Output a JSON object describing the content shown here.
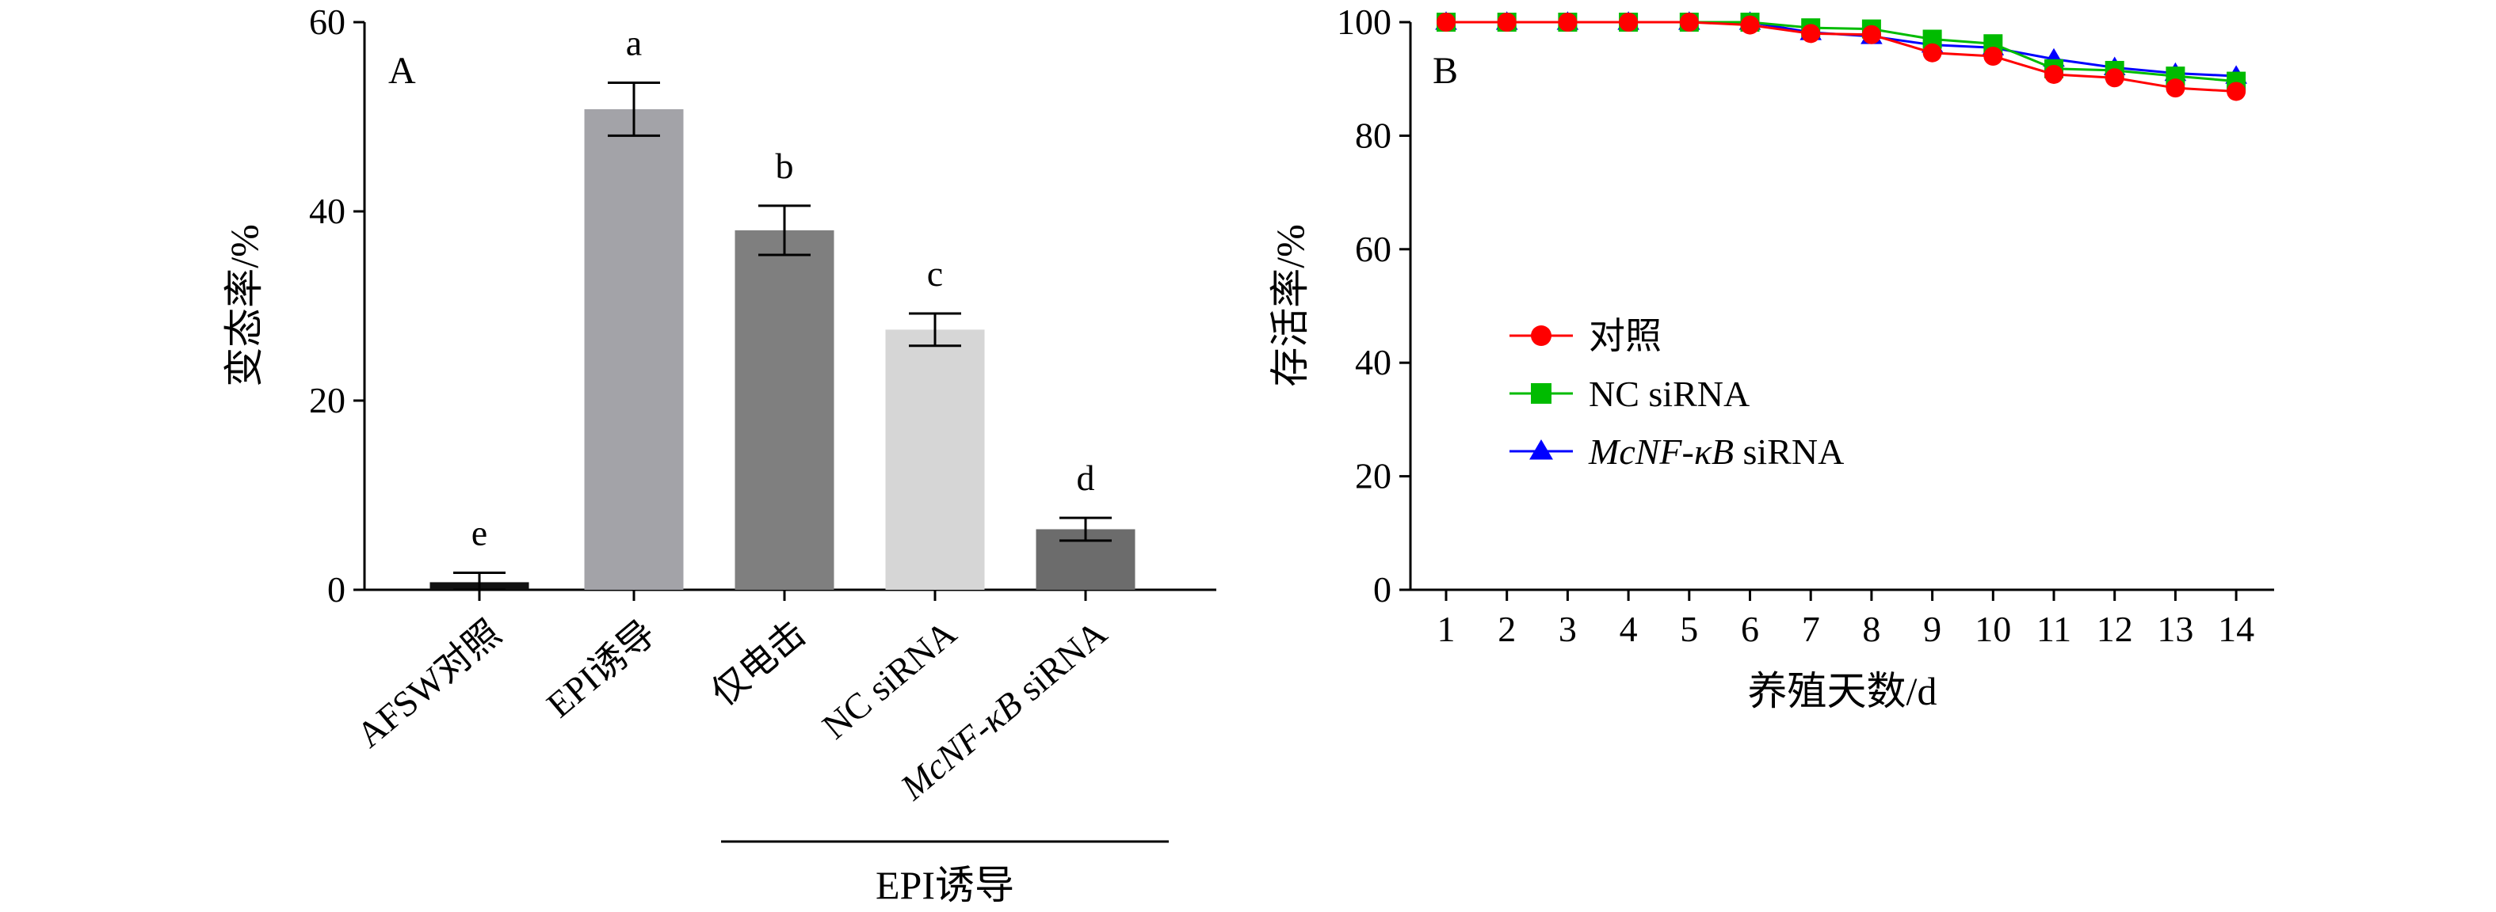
{
  "panels": {
    "a": {
      "label": "A"
    },
    "b": {
      "label": "B"
    }
  },
  "chart_data": [
    {
      "type": "bar",
      "panel": "A",
      "ylabel": "变态率/%",
      "ylim": [
        0,
        60
      ],
      "yticks": [
        0,
        20,
        40,
        60
      ],
      "categories": [
        "AFSW对照",
        "EPI诱导",
        "仅电击",
        "NC siRNA",
        "McNF-κB siRNA"
      ],
      "category_italic": [
        null,
        null,
        null,
        null,
        "McNF-κB"
      ],
      "values": [
        0.8,
        50.8,
        38.0,
        27.5,
        6.4
      ],
      "errors": [
        1.0,
        2.8,
        2.6,
        1.7,
        1.2
      ],
      "significance": [
        "e",
        "a",
        "b",
        "c",
        "d"
      ],
      "bar_colors": [
        "#111111",
        "#a3a3a8",
        "#7f7f7f",
        "#d6d6d6",
        "#6c6c6c"
      ],
      "group_bracket": {
        "label": "EPI诱导",
        "from": 2,
        "to": 4
      }
    },
    {
      "type": "line",
      "panel": "B",
      "xlabel": "养殖天数/d",
      "ylabel": "存活率/%",
      "ylim": [
        0,
        100
      ],
      "yticks": [
        0,
        20,
        40,
        60,
        80,
        100
      ],
      "x": [
        1,
        2,
        3,
        4,
        5,
        6,
        7,
        8,
        9,
        10,
        11,
        12,
        13,
        14
      ],
      "legend_position": "center-left",
      "series": [
        {
          "name": "对照",
          "italic_part": "",
          "rest": "对照",
          "color": "#ff0000",
          "marker": "circle",
          "values": [
            100,
            100,
            100,
            100,
            100,
            99.5,
            98,
            97.8,
            94.6,
            94,
            90.8,
            90.2,
            88.4,
            87.8
          ]
        },
        {
          "name": "NC siRNA",
          "italic_part": "",
          "rest": "NC siRNA",
          "color": "#00bb00",
          "marker": "square",
          "values": [
            100,
            100,
            100,
            100,
            100,
            100,
            99,
            98.8,
            97,
            96.2,
            91.8,
            91.5,
            90.5,
            89.6
          ]
        },
        {
          "name": "McNF-κB siRNA",
          "italic_part": "McNF-κB",
          "rest": " siRNA",
          "color": "#0000ff",
          "marker": "triangle",
          "values": [
            100,
            100,
            100,
            100,
            100,
            100,
            98.2,
            97.5,
            96,
            95.5,
            93.5,
            92,
            91,
            90.5
          ]
        }
      ]
    }
  ]
}
